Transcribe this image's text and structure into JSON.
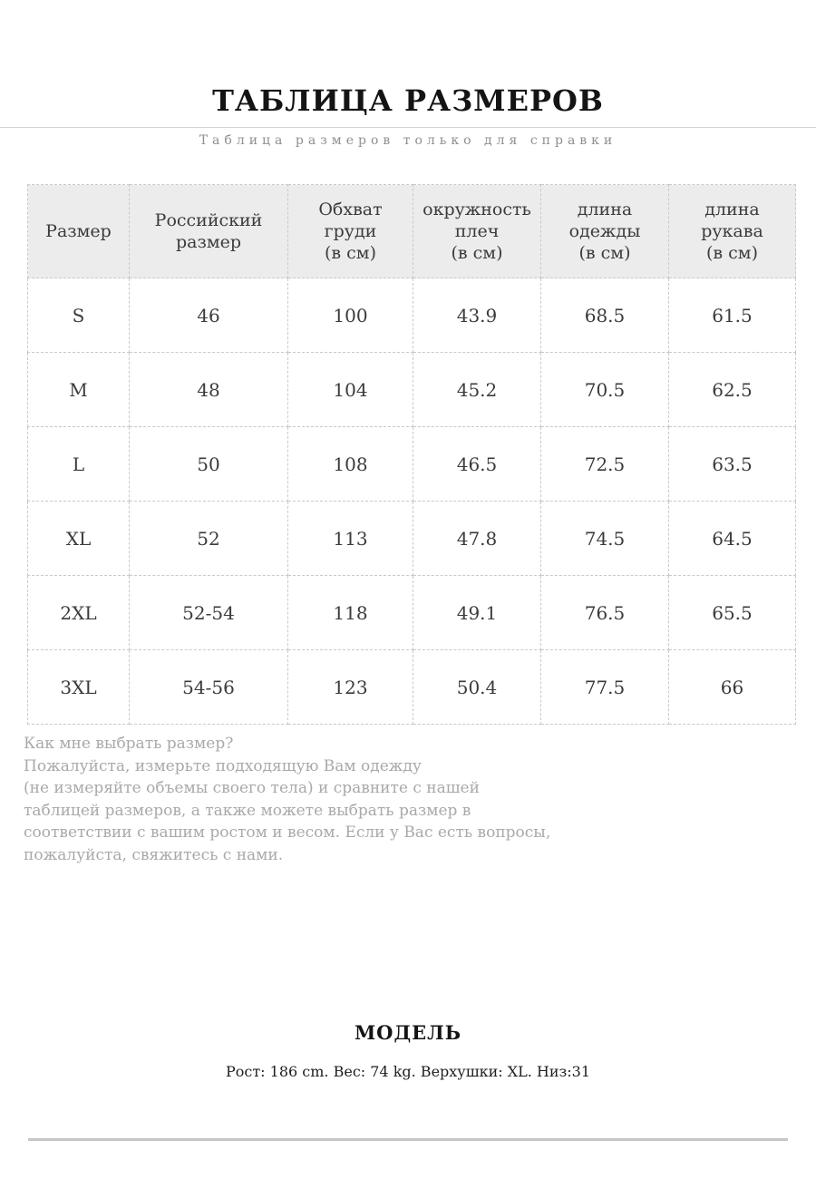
{
  "page": {
    "title": "ТАБЛИЦА РАЗМЕРОВ",
    "subtitle": "Таблица размеров только для справки"
  },
  "size_table": {
    "headers": [
      "Размер",
      "Российский\nразмер",
      "Обхват\nгруди\n(в см)",
      "окружность\nплеч\n(в см)",
      "длина\nодежды\n(в см)",
      "длина\nрукава\n(в см)"
    ],
    "rows": [
      [
        "S",
        "46",
        "100",
        "43.9",
        "68.5",
        "61.5"
      ],
      [
        "M",
        "48",
        "104",
        "45.2",
        "70.5",
        "62.5"
      ],
      [
        "L",
        "50",
        "108",
        "46.5",
        "72.5",
        "63.5"
      ],
      [
        "XL",
        "52",
        "113",
        "47.8",
        "74.5",
        "64.5"
      ],
      [
        "2XL",
        "52-54",
        "118",
        "49.1",
        "76.5",
        "65.5"
      ],
      [
        "3XL",
        "54-56",
        "123",
        "50.4",
        "77.5",
        "66"
      ]
    ]
  },
  "help_text": {
    "lines": [
      "Как мне выбрать размер?",
      "Пожалуйста, измерьте подходящую Вам одежду",
      "(не измеряйте объемы своего тела) и сравните с нашей",
      "таблицей размеров, а также можете выбрать размер в",
      "соответствии с вашим ростом и весом. Если у Вас есть вопросы,",
      "пожалуйста, свяжитесь с нами."
    ]
  },
  "model": {
    "heading": "МОДЕЛЬ",
    "details": "Рост: 186 cm. Вес: 74 kg. Верхушки: XL. Низ:31"
  },
  "colors": {
    "header_background": "#ececec",
    "table_border": "#c9c9c9",
    "muted_text": "#a9a9a9",
    "divider": "#c6c6c6"
  }
}
